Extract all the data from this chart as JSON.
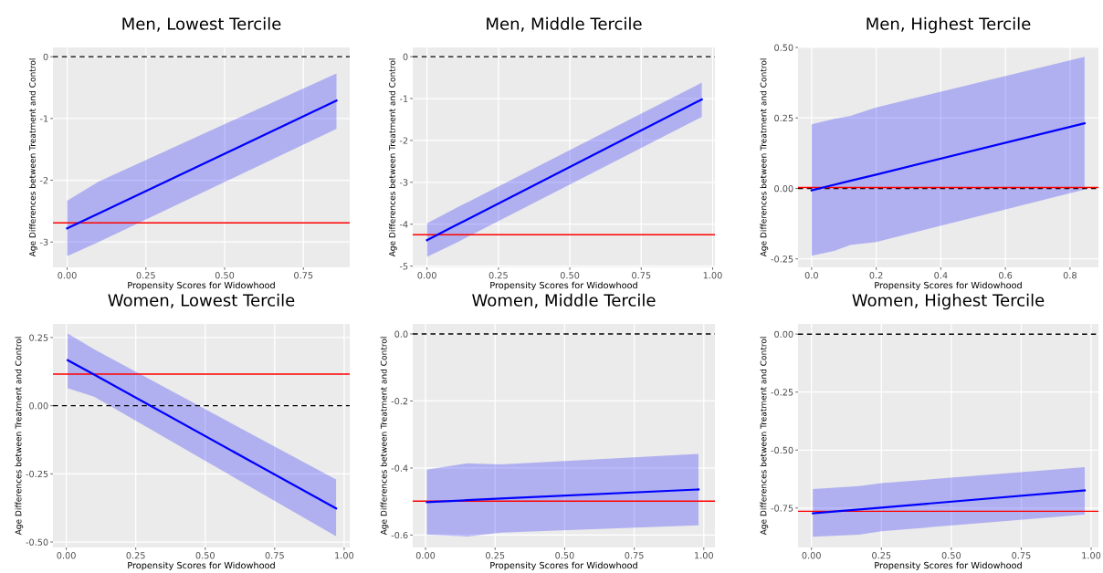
{
  "chart_data": [
    {
      "type": "line",
      "title": "Men, Lowest Tercile",
      "xlabel": "Propensity Scores for Widowhood",
      "ylabel": "Age Differences between Treatment and Control",
      "xlim": [
        -0.045,
        0.897
      ],
      "ylim": [
        -3.41,
        0.15
      ],
      "xticks": [
        {
          "value": 0,
          "label": "0.00"
        },
        {
          "value": 0.25,
          "label": "0.25"
        },
        {
          "value": 0.5,
          "label": "0.50"
        },
        {
          "value": 0.75,
          "label": "0.75"
        }
      ],
      "yticks": [
        -3,
        -2,
        -1,
        0
      ],
      "grid": true,
      "marker": "none",
      "line_style": "solid",
      "series": [
        {
          "color": "#0000ff",
          "x": [
            0,
            0.1,
            0.855
          ],
          "values": [
            -2.78,
            -2.54,
            -0.71
          ],
          "upper": [
            -2.33,
            -2.02,
            -0.27
          ],
          "lower": [
            -3.23,
            -3.0,
            -1.17
          ]
        }
      ],
      "ref_lines": [
        {
          "axis": "y",
          "value": 0,
          "color": "#000000",
          "line_style": "dashed"
        },
        {
          "axis": "y",
          "value": -2.69,
          "color": "#ff0000",
          "line_style": "solid"
        }
      ]
    },
    {
      "type": "line",
      "title": "Men, Middle Tercile",
      "xlabel": "Propensity Scores for Widowhood",
      "ylabel": "Age Differences between Treatment and Control",
      "xlim": [
        -0.05,
        1.008
      ],
      "ylim": [
        -5.03,
        0.22
      ],
      "xticks": [
        {
          "value": 0,
          "label": "0.00"
        },
        {
          "value": 0.25,
          "label": "0.25"
        },
        {
          "value": 0.5,
          "label": "0.50"
        },
        {
          "value": 0.75,
          "label": "0.75"
        },
        {
          "value": 1,
          "label": "1.00"
        }
      ],
      "yticks": [
        -5,
        -4,
        -3,
        -2,
        -1,
        0
      ],
      "grid": true,
      "marker": "none",
      "line_style": "solid",
      "series": [
        {
          "color": "#0000ff",
          "x": [
            0,
            0.1,
            0.962
          ],
          "values": [
            -4.38,
            -4.03,
            -1.02
          ],
          "upper": [
            -3.98,
            -3.62,
            -0.62
          ],
          "lower": [
            -4.78,
            -4.45,
            -1.44
          ]
        }
      ],
      "ref_lines": [
        {
          "axis": "y",
          "value": 0,
          "color": "#000000",
          "line_style": "dashed"
        },
        {
          "axis": "y",
          "value": -4.25,
          "color": "#ff0000",
          "line_style": "solid"
        }
      ]
    },
    {
      "type": "line",
      "title": "Men, Highest Tercile",
      "xlabel": "Propensity Scores for Widowhood",
      "ylabel": "Age Differences between Treatment and Control",
      "xlim": [
        -0.042,
        0.888
      ],
      "ylim": [
        -0.28,
        0.5
      ],
      "xticks": [
        {
          "value": 0,
          "label": "0.0"
        },
        0.2,
        0.4,
        0.6,
        0.8
      ],
      "yticks": [
        {
          "value": -0.25,
          "label": "-0.25"
        },
        {
          "value": 0,
          "label": "0.00"
        },
        {
          "value": 0.25,
          "label": "0.25"
        },
        {
          "value": 0.5,
          "label": "0.50"
        }
      ],
      "grid": true,
      "marker": "none",
      "line_style": "solid",
      "series": [
        {
          "color": "#0000ff",
          "x": [
            0,
            0.07,
            0.12,
            0.2,
            0.845
          ],
          "values": [
            -0.007,
            0.013,
            0.027,
            0.049,
            0.231
          ],
          "upper": [
            0.227,
            0.247,
            0.257,
            0.287,
            0.467
          ],
          "lower": [
            -0.239,
            -0.222,
            -0.201,
            -0.19,
            -0.004
          ]
        }
      ],
      "ref_lines": [
        {
          "axis": "y",
          "value": 0,
          "color": "#000000",
          "line_style": "dashed"
        },
        {
          "axis": "y",
          "value": 0.003,
          "color": "#ff0000",
          "line_style": "solid"
        }
      ]
    },
    {
      "type": "line",
      "title": "Women, Lowest Tercile",
      "xlabel": "Propensity Scores for Widowhood",
      "ylabel": "Age Differences between Treatment and Control",
      "xlim": [
        -0.048,
        1.02
      ],
      "ylim": [
        -0.52,
        0.3
      ],
      "xticks": [
        {
          "value": 0,
          "label": "0.00"
        },
        {
          "value": 0.25,
          "label": "0.25"
        },
        {
          "value": 0.5,
          "label": "0.50"
        },
        {
          "value": 0.75,
          "label": "0.75"
        },
        {
          "value": 1,
          "label": "1.00"
        }
      ],
      "yticks": [
        {
          "value": -0.5,
          "label": "-0.50"
        },
        {
          "value": -0.25,
          "label": "-0.25"
        },
        {
          "value": 0,
          "label": "0.00"
        },
        {
          "value": 0.25,
          "label": "0.25"
        }
      ],
      "grid": true,
      "marker": "none",
      "line_style": "solid",
      "series": [
        {
          "color": "#0000ff",
          "x": [
            0.005,
            0.1,
            0.971
          ],
          "values": [
            0.167,
            0.114,
            -0.377
          ],
          "upper": [
            0.265,
            0.207,
            -0.271
          ],
          "lower": [
            0.064,
            0.033,
            -0.479
          ]
        }
      ],
      "ref_lines": [
        {
          "axis": "y",
          "value": 0,
          "color": "#000000",
          "line_style": "dashed"
        },
        {
          "axis": "y",
          "value": 0.116,
          "color": "#ff0000",
          "line_style": "solid"
        }
      ]
    },
    {
      "type": "line",
      "title": "Women, Middle Tercile",
      "xlabel": "Propensity Scores for Widowhood",
      "ylabel": "Age Differences between Treatment and Control",
      "xlim": [
        -0.046,
        1.04
      ],
      "ylim": [
        -0.637,
        0.03
      ],
      "xticks": [
        {
          "value": 0,
          "label": "0.00"
        },
        {
          "value": 0.25,
          "label": "0.25"
        },
        {
          "value": 0.5,
          "label": "0.50"
        },
        {
          "value": 0.75,
          "label": "0.75"
        },
        {
          "value": 1,
          "label": "1.00"
        }
      ],
      "yticks": [
        -0.6,
        -0.4,
        -0.2,
        {
          "value": 0,
          "label": "0.0"
        }
      ],
      "grid": true,
      "marker": "none",
      "line_style": "solid",
      "series": [
        {
          "color": "#0000ff",
          "x": [
            0.005,
            0.15,
            0.27,
            0.981
          ],
          "values": [
            -0.502,
            -0.496,
            -0.491,
            -0.464
          ],
          "upper": [
            -0.405,
            -0.386,
            -0.389,
            -0.358
          ],
          "lower": [
            -0.599,
            -0.604,
            -0.593,
            -0.571
          ]
        }
      ],
      "ref_lines": [
        {
          "axis": "y",
          "value": 0,
          "color": "#000000",
          "line_style": "dashed"
        },
        {
          "axis": "y",
          "value": -0.499,
          "color": "#ff0000",
          "line_style": "solid"
        }
      ]
    },
    {
      "type": "line",
      "title": "Women, Highest Tercile",
      "xlabel": "Propensity Scores for Widowhood",
      "ylabel": "Age Differences between Treatment and Control",
      "xlim": [
        -0.048,
        1.026
      ],
      "ylim": [
        -0.92,
        0.044
      ],
      "xticks": [
        {
          "value": 0,
          "label": "0.00"
        },
        {
          "value": 0.25,
          "label": "0.25"
        },
        {
          "value": 0.5,
          "label": "0.50"
        },
        {
          "value": 0.75,
          "label": "0.75"
        },
        {
          "value": 1,
          "label": "1.00"
        }
      ],
      "yticks": [
        {
          "value": -0.75,
          "label": "-0.75"
        },
        {
          "value": -0.5,
          "label": "-0.50"
        },
        {
          "value": -0.25,
          "label": "-0.25"
        },
        {
          "value": 0,
          "label": "0.00"
        }
      ],
      "grid": true,
      "marker": "none",
      "line_style": "solid",
      "series": [
        {
          "color": "#0000ff",
          "x": [
            0.005,
            0.17,
            0.25,
            0.977
          ],
          "values": [
            -0.773,
            -0.756,
            -0.748,
            -0.674
          ],
          "upper": [
            -0.668,
            -0.655,
            -0.643,
            -0.574
          ],
          "lower": [
            -0.874,
            -0.865,
            -0.85,
            -0.778
          ]
        }
      ],
      "ref_lines": [
        {
          "axis": "y",
          "value": 0,
          "color": "#000000",
          "line_style": "dashed"
        },
        {
          "axis": "y",
          "value": -0.764,
          "color": "#ff0000",
          "line_style": "solid"
        }
      ]
    }
  ]
}
